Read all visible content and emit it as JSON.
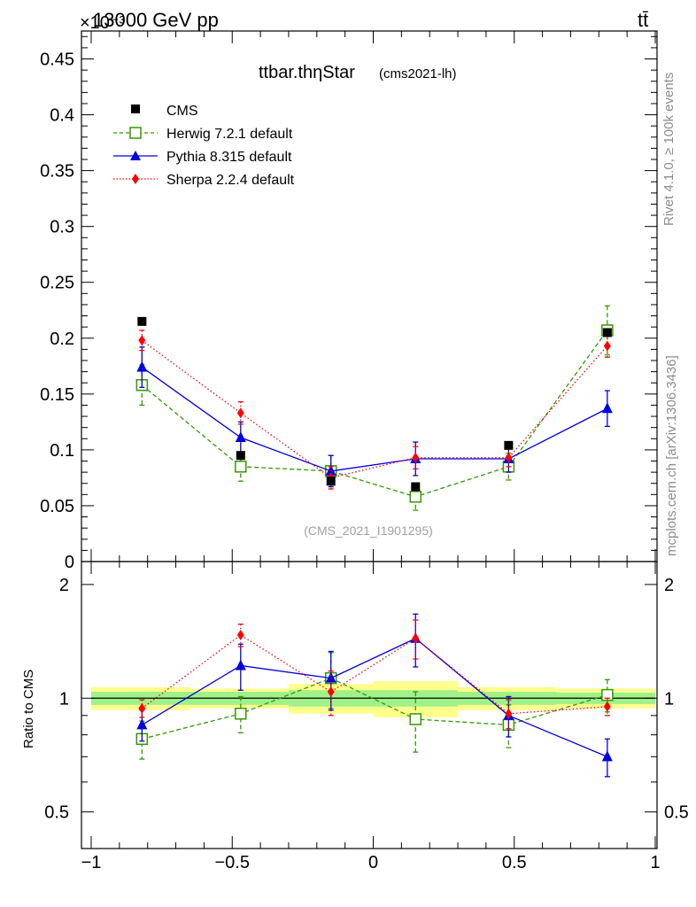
{
  "header": {
    "energy_label": "13000 GeV pp",
    "exponent_label": "×10⁻³",
    "process_label": "tt̄"
  },
  "side_labels": {
    "rivet": "Rivet 4.1.0, ≥ 100k events",
    "mcplots": "mcplots.cern.ch [arXiv:1306.3436]"
  },
  "chart_data": {
    "type": "scatter",
    "title": "ttbar.thηStar",
    "subtitle": "(cms2021-lh)",
    "watermark": "(CMS_2021_I1901295)",
    "xlabel": "",
    "ylabel": "",
    "ylabel_ratio": "Ratio to CMS",
    "xlim": [
      -1,
      1
    ],
    "ylim": [
      0,
      0.475
    ],
    "ratio_scale": "log",
    "ratio_ylim": [
      0.4,
      2.3
    ],
    "x_ticks": [
      "−1",
      "−0.5",
      "0",
      "0.5",
      "1"
    ],
    "y_ticks": [
      "0",
      "0.05",
      "0.1",
      "0.15",
      "0.2",
      "0.25",
      "0.3",
      "0.35",
      "0.4",
      "0.45"
    ],
    "ratio_ticks": [
      "0.5",
      "1",
      "2"
    ],
    "bin_edges": [
      -1.0,
      -0.65,
      -0.3,
      0.0,
      0.3,
      0.65,
      1.0
    ],
    "x": [
      -0.82,
      -0.47,
      -0.15,
      0.15,
      0.48,
      0.83
    ],
    "data": {
      "name": "CMS",
      "values": [
        0.215,
        0.095,
        0.072,
        0.067,
        0.104,
        0.205
      ],
      "band_inner": [
        0.04,
        0.04,
        0.05,
        0.05,
        0.04,
        0.035
      ],
      "band_outer": [
        0.07,
        0.06,
        0.09,
        0.11,
        0.07,
        0.06
      ]
    },
    "series": [
      {
        "name": "Herwig 7.2.1 default",
        "color": "#339900",
        "marker": "open-square",
        "line": "dashed",
        "values": [
          0.158,
          0.085,
          0.081,
          0.058,
          0.085,
          0.207
        ],
        "errors": [
          0.018,
          0.013,
          0.014,
          0.012,
          0.012,
          0.022
        ],
        "ratio": [
          0.78,
          0.91,
          1.13,
          0.88,
          0.85,
          1.02
        ],
        "ratio_errors": [
          0.09,
          0.1,
          0.19,
          0.16,
          0.11,
          0.1
        ]
      },
      {
        "name": "Pythia 8.315 default",
        "color": "#0000dd",
        "marker": "triangle",
        "line": "solid",
        "values": [
          0.174,
          0.111,
          0.081,
          0.092,
          0.092,
          0.137
        ],
        "errors": [
          0.018,
          0.014,
          0.014,
          0.015,
          0.012,
          0.016
        ],
        "ratio": [
          0.85,
          1.22,
          1.13,
          1.44,
          0.9,
          0.7
        ],
        "ratio_errors": [
          0.08,
          0.17,
          0.2,
          0.23,
          0.11,
          0.08
        ]
      },
      {
        "name": "Sherpa 2.2.4 default",
        "color": "#ff0000",
        "marker": "diamond",
        "line": "dotted",
        "values": [
          0.198,
          0.133,
          0.075,
          0.093,
          0.093,
          0.193
        ],
        "errors": [
          0.009,
          0.01,
          0.01,
          0.01,
          0.008,
          0.01
        ],
        "ratio": [
          0.94,
          1.47,
          1.04,
          1.44,
          0.91,
          0.95
        ],
        "ratio_errors": [
          0.05,
          0.1,
          0.14,
          0.17,
          0.08,
          0.05
        ]
      }
    ],
    "legend_position": "top-left"
  }
}
